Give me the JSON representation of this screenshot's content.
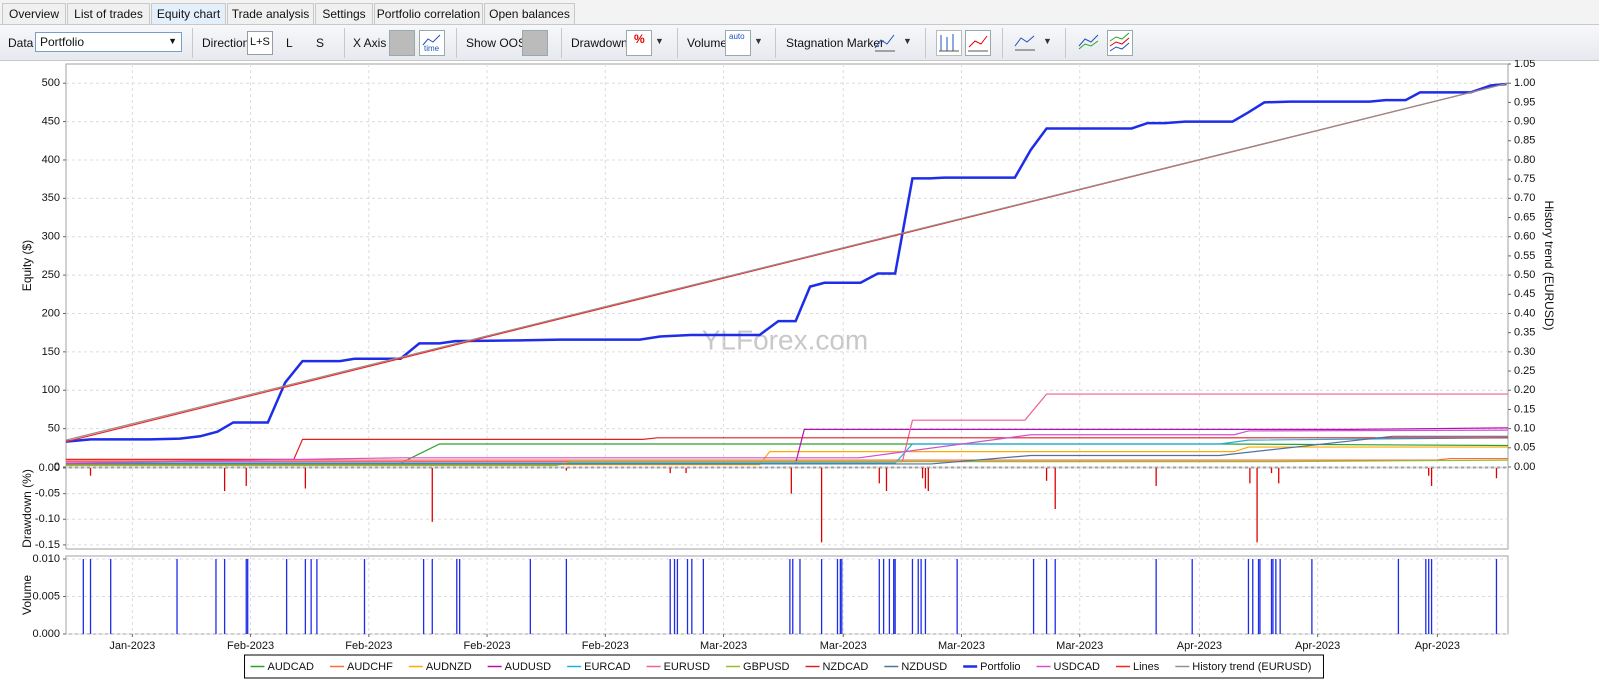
{
  "tabs": [
    "Overview",
    "List of trades",
    "Equity chart",
    "Trade analysis",
    "Settings",
    "Portfolio correlation",
    "Open balances"
  ],
  "toolbar": {
    "data_label": "Data",
    "data_value": "Portfolio",
    "direction_label": "Direction",
    "direction_options": [
      "L+S",
      "L",
      "S"
    ],
    "x_axis_label": "X Axis",
    "x_axis_icon": "time",
    "show_oos_label": "Show OOS",
    "drawdown_label": "Drawdown",
    "drawdown_icon": "%",
    "volume_label": "Volume",
    "volume_icon": "auto",
    "stagnation_label": "Stagnation Marker"
  },
  "watermark": "YLForex.com",
  "chart_data": [
    {
      "type": "line",
      "ylabel": "Equity ($)",
      "y2label": "History trend (EURUSD)",
      "grid": true,
      "legend": "bottom",
      "xlim": [
        0,
        100
      ],
      "ylim": [
        0,
        525
      ],
      "yticks": [
        0,
        50,
        100,
        150,
        200,
        250,
        300,
        350,
        400,
        450,
        500
      ],
      "y2lim": [
        0,
        1.05
      ],
      "y2ticks": [
        {
          "value": 0,
          "label": "0.00"
        },
        0.05,
        {
          "value": 0.1,
          "label": "0.10"
        },
        0.15,
        {
          "value": 0.2,
          "label": "0.20"
        },
        0.25,
        {
          "value": 0.3,
          "label": "0.30"
        },
        0.35,
        {
          "value": 0.4,
          "label": "0.40"
        },
        0.45,
        {
          "value": 0.5,
          "label": "0.50"
        },
        0.55,
        {
          "value": 0.6,
          "label": "0.60"
        },
        0.65,
        {
          "value": 0.7,
          "label": "0.70"
        },
        0.75,
        {
          "value": 0.8,
          "label": "0.80"
        },
        0.85,
        {
          "value": 0.9,
          "label": "0.90"
        },
        0.95,
        {
          "value": 1,
          "label": "1.00"
        },
        1.05
      ],
      "series": [
        {
          "name": "AUDCAD",
          "color": "#2ca02c",
          "x": [
            0,
            23.2,
            25.9,
            80,
            100
          ],
          "values": [
            5,
            5,
            30,
            30,
            28
          ]
        },
        {
          "name": "AUDCHF",
          "color": "#ff6a3d",
          "x": [
            0,
            95,
            96,
            100
          ],
          "values": [
            9,
            9,
            11,
            11
          ]
        },
        {
          "name": "AUDNZD",
          "color": "#ffaa00",
          "x": [
            0,
            48.1,
            48.8,
            81,
            82,
            100
          ],
          "values": [
            3,
            3,
            20,
            20,
            26,
            26
          ]
        },
        {
          "name": "AUDUSD",
          "color": "#b010b0",
          "x": [
            0,
            50.6,
            51.2,
            89,
            100
          ],
          "values": [
            5,
            5,
            49,
            49,
            51
          ]
        },
        {
          "name": "EURCAD",
          "color": "#20b0e0",
          "x": [
            0,
            57.5,
            58.7,
            80,
            82,
            100
          ],
          "values": [
            5,
            5,
            30,
            30,
            35,
            38
          ]
        },
        {
          "name": "EURUSD",
          "color": "#f06090",
          "x": [
            0,
            58,
            58.7,
            66.5,
            68,
            100
          ],
          "values": [
            7,
            7,
            61,
            61,
            95,
            95
          ]
        },
        {
          "name": "GBPUSD",
          "color": "#90c030",
          "x": [
            0,
            34,
            35,
            84,
            100
          ],
          "values": [
            2,
            2,
            7,
            7,
            9
          ]
        },
        {
          "name": "NZDCAD",
          "color": "#e02020",
          "x": [
            0,
            15.8,
            16.4,
            40,
            41,
            100
          ],
          "values": [
            10,
            10,
            36,
            36,
            38,
            38
          ]
        },
        {
          "name": "NZDUSD",
          "color": "#5070a0",
          "x": [
            0,
            60,
            66.9,
            80,
            92,
            100
          ],
          "values": [
            4,
            4,
            15,
            15,
            40,
            40
          ]
        },
        {
          "name": "Portfolio",
          "color": "#1e2de8",
          "x": [
            0,
            1.7,
            5.8,
            7.9,
            9.3,
            10.5,
            11.6,
            14,
            15.2,
            16.4,
            19,
            20,
            23.2,
            24.5,
            25.9,
            27,
            31.5,
            34.3,
            39.8,
            41.2,
            43.3,
            48.1,
            49.4,
            50.6,
            51.6,
            52.6,
            55.1,
            56.3,
            57.5,
            58.7,
            59.9,
            60.9,
            65.8,
            66.9,
            68,
            73.9,
            75,
            76.2,
            77.6,
            80.9,
            82,
            83.1,
            84.9,
            90.4,
            91.5,
            92.9,
            93.9,
            97.4,
            98.8,
            99.9
          ],
          "values": [
            33,
            36,
            36,
            37,
            40,
            46,
            58,
            58,
            110,
            138,
            138,
            141,
            141,
            161,
            161,
            164,
            165,
            166,
            166,
            170,
            172,
            172,
            190,
            190,
            235,
            240,
            240,
            252,
            252,
            376,
            376,
            377,
            377,
            413,
            441,
            441,
            448,
            448,
            450,
            450,
            462,
            475,
            476,
            476,
            478,
            478,
            488,
            488,
            497,
            499
          ]
        },
        {
          "name": "USDCAD",
          "color": "#d050d0",
          "x": [
            0,
            23.2,
            55,
            66.9,
            81,
            82,
            100
          ],
          "values": [
            5,
            12,
            12,
            42,
            42,
            47,
            48
          ]
        },
        {
          "name": "Lines",
          "color": "#ff2020",
          "x": [
            0,
            100
          ],
          "values": [
            33,
            500
          ]
        },
        {
          "name": "History trend (EURUSD)",
          "color": "#909090",
          "axis": "y2",
          "x": [
            0,
            100
          ],
          "values": [
            0.07,
            1
          ]
        }
      ]
    },
    {
      "type": "bar",
      "ylabel": "Drawdown (%)",
      "color": "#e00000",
      "grid": true,
      "xlim": [
        0,
        100
      ],
      "ylim": [
        -0.158,
        0
      ],
      "yticks": [
        {
          "value": 0,
          "label": "0.00"
        },
        -0.05,
        {
          "value": -0.1,
          "label": "-0.10"
        },
        -0.15
      ],
      "x": [
        1.7,
        11,
        12.5,
        16.6,
        25.4,
        34.7,
        41.9,
        43,
        50.3,
        52.4,
        56.4,
        56.9,
        59.4,
        59.6,
        59.8,
        68,
        68.6,
        75.6,
        82.1,
        82.6,
        83.6,
        84.1,
        94.5,
        94.7,
        99.2
      ],
      "values": [
        -0.015,
        -0.045,
        -0.035,
        -0.04,
        -0.105,
        -0.005,
        -0.01,
        -0.01,
        -0.05,
        -0.145,
        -0.03,
        -0.045,
        -0.02,
        -0.04,
        -0.045,
        -0.025,
        -0.08,
        -0.035,
        -0.03,
        -0.145,
        -0.01,
        -0.03,
        -0.015,
        -0.035,
        -0.02
      ]
    },
    {
      "type": "bar",
      "ylabel": "Volume",
      "color": "#1e2de8",
      "grid": true,
      "xlim": [
        0,
        100
      ],
      "ylim": [
        0,
        0.0104
      ],
      "yticks": [
        {
          "value": 0,
          "label": "0.000"
        },
        0.005,
        {
          "value": 0.01,
          "label": "0.010"
        }
      ],
      "xticks": [
        {
          "value": 4.6,
          "label": "Jan-2023"
        },
        {
          "value": 12.8,
          "label": "Feb-2023"
        },
        {
          "value": 21,
          "label": "Feb-2023"
        },
        {
          "value": 29.2,
          "label": "Feb-2023"
        },
        {
          "value": 37.4,
          "label": "Feb-2023"
        },
        {
          "value": 45.6,
          "label": "Mar-2023"
        },
        {
          "value": 53.9,
          "label": "Mar-2023"
        },
        {
          "value": 62.1,
          "label": "Mar-2023"
        },
        {
          "value": 70.3,
          "label": "Mar-2023"
        },
        {
          "value": 78.6,
          "label": "Apr-2023"
        },
        {
          "value": 86.8,
          "label": "Apr-2023"
        },
        {
          "value": 95.1,
          "label": "Apr-2023"
        }
      ],
      "x": [
        1.2,
        1.7,
        3.1,
        7.7,
        10.4,
        11,
        12.5,
        12.6,
        15.3,
        16.6,
        17,
        17.4,
        20.7,
        24.8,
        25.4,
        27.1,
        27.3,
        32.2,
        34.7,
        41.9,
        42.2,
        42.4,
        43.1,
        43.4,
        44.2,
        50.2,
        50.4,
        50.9,
        52.4,
        53.5,
        53.7,
        53.8,
        56.4,
        56.7,
        57.1,
        57.4,
        57.5,
        58.7,
        59.1,
        59.3,
        59.6,
        61.8,
        67.1,
        68,
        68.6,
        75.6,
        78.1,
        82,
        82.3,
        82.7,
        82.8,
        83.6,
        83.7,
        83.9,
        84.2,
        86.4,
        92.4,
        94.3,
        94.5,
        94.7,
        99.2
      ],
      "values": [
        0.01,
        0.01,
        0.01,
        0.01,
        0.01,
        0.01,
        0.01,
        0.01,
        0.01,
        0.01,
        0.01,
        0.01,
        0.01,
        0.01,
        0.01,
        0.01,
        0.01,
        0.01,
        0.01,
        0.01,
        0.01,
        0.01,
        0.01,
        0.01,
        0.01,
        0.01,
        0.01,
        0.01,
        0.01,
        0.01,
        0.01,
        0.01,
        0.01,
        0.01,
        0.01,
        0.01,
        0.01,
        0.01,
        0.01,
        0.01,
        0.01,
        0.01,
        0.01,
        0.01,
        0.01,
        0.01,
        0.01,
        0.01,
        0.01,
        0.01,
        0.01,
        0.01,
        0.01,
        0.01,
        0.01,
        0.01,
        0.01,
        0.01,
        0.01,
        0.01,
        0.01
      ]
    }
  ]
}
